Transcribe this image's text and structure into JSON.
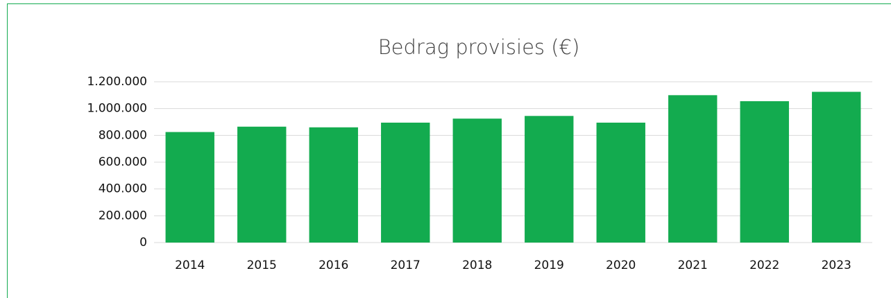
{
  "chart_data": {
    "type": "bar",
    "title": "Bedrag provisies (€)",
    "categories": [
      "2014",
      "2015",
      "2016",
      "2017",
      "2018",
      "2019",
      "2020",
      "2021",
      "2022",
      "2023"
    ],
    "values": [
      825000,
      865000,
      860000,
      895000,
      925000,
      945000,
      895000,
      1100000,
      1055000,
      1125000
    ],
    "color": "#13ab4f",
    "ylim": [
      0,
      1200000
    ],
    "yticks": [
      0,
      {
        "value": 200000,
        "label": "200.000"
      },
      {
        "value": 400000,
        "label": "400.000"
      },
      {
        "value": 600000,
        "label": "600.000"
      },
      {
        "value": 800000,
        "label": "800.000"
      },
      {
        "value": 1000000,
        "label": "1.000.000"
      },
      {
        "value": 1200000,
        "label": "1.200.000"
      }
    ],
    "grid": true
  }
}
